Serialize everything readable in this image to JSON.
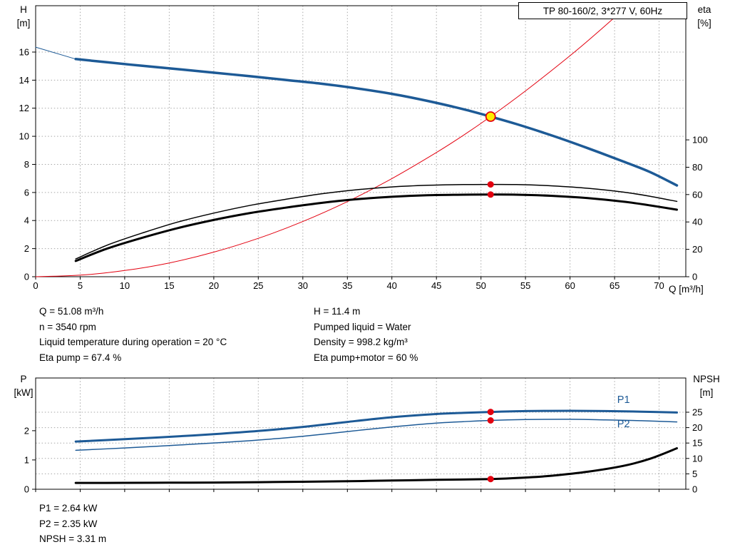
{
  "colors": {
    "blue": "#1d5a96",
    "red": "#e3000f",
    "black": "#000000",
    "yellow": "#ffed00",
    "grid": "#a8a8a8",
    "axis": "#000000",
    "text": "#000000"
  },
  "operating_point": {
    "col1": [
      "Q = 51.08 m³/h",
      "n = 3540 rpm",
      "Liquid temperature during operation = 20 °C",
      "Eta pump = 67.4 %"
    ],
    "col2": [
      "H = 11.4 m",
      "Pumped liquid = Water",
      "Density = 998.2 kg/m³",
      "Eta pump+motor = 60 %"
    ]
  },
  "results": [
    "P1 = 2.64 kW",
    "P2 = 2.35 kW",
    "NPSH = 3.31 m"
  ],
  "chart_data": [
    {
      "type": "line",
      "name": "head-efficiency-chart",
      "title": "TP 80-160/2, 3*277 V, 60Hz",
      "x_axis": {
        "label": "Q [m³/h]",
        "min": 0,
        "max": 73,
        "ticks": [
          0,
          5,
          10,
          15,
          20,
          25,
          30,
          35,
          40,
          45,
          50,
          55,
          60,
          65,
          70
        ],
        "show_labels": true
      },
      "y_left": {
        "title_lines": [
          "H",
          "[m]"
        ],
        "min": 0,
        "max": 19.3,
        "ticks": [
          0,
          2,
          4,
          6,
          8,
          10,
          12,
          14,
          16
        ]
      },
      "y_right": {
        "title_lines": [
          "eta",
          "[%]"
        ],
        "min": 0,
        "max": 198,
        "ticks": [
          0,
          20,
          40,
          60,
          80,
          100
        ]
      },
      "grid": "left",
      "series": [
        {
          "name": "head-curve-extension",
          "axis": "left",
          "color": "blue",
          "width": 1,
          "points": [
            [
              0,
              16.35
            ],
            [
              4.5,
              15.5
            ]
          ]
        },
        {
          "name": "head-curve",
          "axis": "left",
          "color": "blue",
          "width": 3.5,
          "points": [
            [
              4.5,
              15.5
            ],
            [
              8,
              15.27
            ],
            [
              12,
              15.02
            ],
            [
              16,
              14.78
            ],
            [
              20,
              14.53
            ],
            [
              24,
              14.28
            ],
            [
              28,
              14.02
            ],
            [
              32,
              13.75
            ],
            [
              36,
              13.42
            ],
            [
              40,
              13.02
            ],
            [
              44,
              12.52
            ],
            [
              48,
              11.93
            ],
            [
              51.08,
              11.4
            ],
            [
              54,
              10.87
            ],
            [
              58,
              10.05
            ],
            [
              62,
              9.15
            ],
            [
              66,
              8.2
            ],
            [
              69,
              7.45
            ],
            [
              72,
              6.5
            ]
          ]
        },
        {
          "name": "system-curve",
          "axis": "left",
          "color": "red",
          "width": 1,
          "points": [
            [
              0,
              0
            ],
            [
              5,
              0.11
            ],
            [
              10,
              0.44
            ],
            [
              15,
              0.98
            ],
            [
              20,
              1.75
            ],
            [
              25,
              2.73
            ],
            [
              30,
              3.93
            ],
            [
              35,
              5.35
            ],
            [
              40,
              6.99
            ],
            [
              45,
              8.85
            ],
            [
              48,
              10.06
            ],
            [
              51.08,
              11.4
            ],
            [
              55,
              13.23
            ],
            [
              60,
              15.74
            ],
            [
              63,
              17.35
            ],
            [
              66.3,
              19.2
            ]
          ]
        },
        {
          "name": "eta-pump-curve",
          "axis": "right",
          "color": "black",
          "width": 1.5,
          "points": [
            [
              4.5,
              13
            ],
            [
              8,
              23
            ],
            [
              12,
              32
            ],
            [
              16,
              40
            ],
            [
              20,
              46.5
            ],
            [
              24,
              52
            ],
            [
              28,
              56.5
            ],
            [
              32,
              60.5
            ],
            [
              36,
              63.5
            ],
            [
              40,
              65.6
            ],
            [
              44,
              66.8
            ],
            [
              48,
              67.3
            ],
            [
              51.08,
              67.4
            ],
            [
              54,
              67.3
            ],
            [
              58,
              66.4
            ],
            [
              62,
              64.6
            ],
            [
              66,
              61.8
            ],
            [
              69,
              58.8
            ],
            [
              72,
              55
            ]
          ]
        },
        {
          "name": "eta-pump-motor-curve",
          "axis": "right",
          "color": "black",
          "width": 3,
          "points": [
            [
              4.5,
              11.5
            ],
            [
              8,
              20.5
            ],
            [
              12,
              28.5
            ],
            [
              16,
              35.6
            ],
            [
              20,
              41.5
            ],
            [
              24,
              46.4
            ],
            [
              28,
              50.4
            ],
            [
              32,
              53.9
            ],
            [
              36,
              56.6
            ],
            [
              40,
              58.4
            ],
            [
              44,
              59.5
            ],
            [
              48,
              59.9
            ],
            [
              51.08,
              60
            ],
            [
              54,
              59.9
            ],
            [
              58,
              59.1
            ],
            [
              62,
              57.4
            ],
            [
              66,
              54.8
            ],
            [
              69,
              52.1
            ],
            [
              72,
              49
            ]
          ]
        }
      ],
      "markers": [
        {
          "name": "eta-pump-point",
          "axis": "right",
          "x": 51.08,
          "y": 67.4,
          "r": 4.5,
          "fill": "red"
        },
        {
          "name": "eta-pump-motor-point",
          "axis": "right",
          "x": 51.08,
          "y": 60,
          "r": 4.5,
          "fill": "red"
        },
        {
          "name": "duty-point",
          "axis": "left",
          "x": 51.08,
          "y": 11.4,
          "r": 6.5,
          "fill": "yellow",
          "stroke": "red"
        }
      ]
    },
    {
      "type": "line",
      "name": "power-npsh-chart",
      "x_axis": {
        "min": 0,
        "max": 73,
        "ticks": [
          0,
          5,
          10,
          15,
          20,
          25,
          30,
          35,
          40,
          45,
          50,
          55,
          60,
          65,
          70
        ],
        "show_labels": false
      },
      "y_left": {
        "title_lines": [
          "P",
          "[kW]"
        ],
        "min": 0,
        "max": 3.8,
        "ticks": [
          0,
          1,
          2
        ]
      },
      "y_right": {
        "title_lines": [
          "NPSH",
          "[m]"
        ],
        "min": 0,
        "max": 36.1,
        "ticks": [
          0,
          5,
          10,
          15,
          20,
          25
        ]
      },
      "grid": "right",
      "series": [
        {
          "name": "p1-curve",
          "axis": "left",
          "color": "blue",
          "width": 3,
          "label": {
            "text": "P1",
            "x": 65.3,
            "y": 2.95
          },
          "points": [
            [
              4.5,
              1.63
            ],
            [
              10,
              1.71
            ],
            [
              15,
              1.79
            ],
            [
              20,
              1.88
            ],
            [
              25,
              1.99
            ],
            [
              30,
              2.13
            ],
            [
              35,
              2.3
            ],
            [
              40,
              2.46
            ],
            [
              45,
              2.57
            ],
            [
              48,
              2.61
            ],
            [
              51.08,
              2.64
            ],
            [
              55,
              2.67
            ],
            [
              60,
              2.68
            ],
            [
              64,
              2.67
            ],
            [
              68,
              2.65
            ],
            [
              72,
              2.62
            ]
          ]
        },
        {
          "name": "p2-curve",
          "axis": "left",
          "color": "blue",
          "width": 1.5,
          "label": {
            "text": "P2",
            "x": 65.3,
            "y": 2.12
          },
          "points": [
            [
              4.5,
              1.33
            ],
            [
              10,
              1.41
            ],
            [
              15,
              1.49
            ],
            [
              20,
              1.58
            ],
            [
              25,
              1.68
            ],
            [
              30,
              1.81
            ],
            [
              35,
              1.97
            ],
            [
              40,
              2.13
            ],
            [
              45,
              2.26
            ],
            [
              48,
              2.31
            ],
            [
              51.08,
              2.35
            ],
            [
              55,
              2.38
            ],
            [
              60,
              2.39
            ],
            [
              64,
              2.37
            ],
            [
              68,
              2.34
            ],
            [
              72,
              2.3
            ]
          ]
        },
        {
          "name": "npsh-curve",
          "axis": "right",
          "color": "black",
          "width": 3,
          "points": [
            [
              4.5,
              2.05
            ],
            [
              10,
              2.08
            ],
            [
              15,
              2.12
            ],
            [
              20,
              2.18
            ],
            [
              25,
              2.28
            ],
            [
              30,
              2.42
            ],
            [
              35,
              2.6
            ],
            [
              40,
              2.83
            ],
            [
              45,
              3.05
            ],
            [
              51.08,
              3.31
            ],
            [
              55,
              3.8
            ],
            [
              58,
              4.4
            ],
            [
              62,
              5.7
            ],
            [
              66,
              7.6
            ],
            [
              69,
              9.9
            ],
            [
              72,
              13.3
            ]
          ]
        }
      ],
      "markers": [
        {
          "name": "p1-point",
          "axis": "left",
          "x": 51.08,
          "y": 2.64,
          "r": 4.5,
          "fill": "red"
        },
        {
          "name": "p2-point",
          "axis": "left",
          "x": 51.08,
          "y": 2.35,
          "r": 4.5,
          "fill": "red"
        },
        {
          "name": "npsh-point",
          "axis": "right",
          "x": 51.08,
          "y": 3.31,
          "r": 4.5,
          "fill": "red"
        }
      ]
    }
  ]
}
